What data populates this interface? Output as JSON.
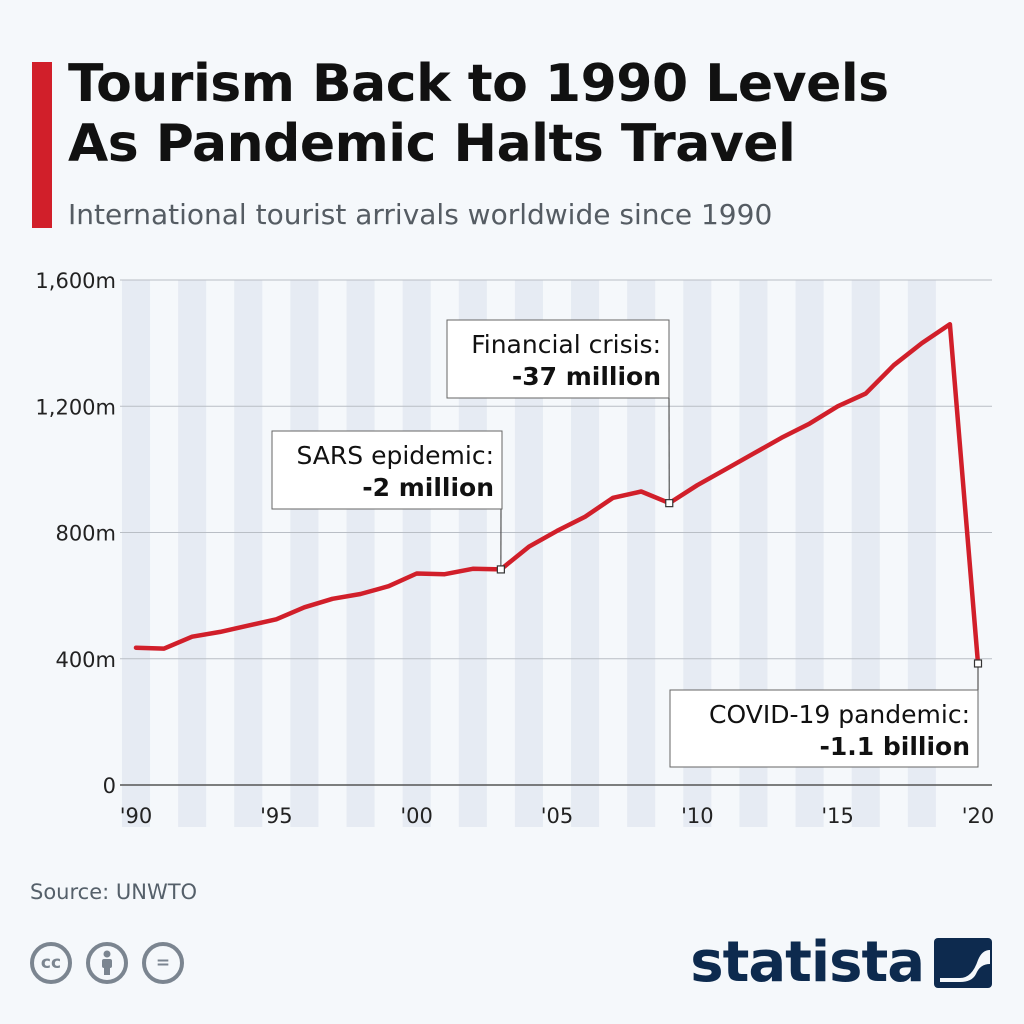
{
  "header": {
    "title_line1": "Tourism Back to 1990 Levels",
    "title_line2": "As Pandemic Halts Travel",
    "subtitle": "International tourist arrivals worldwide since 1990"
  },
  "colors": {
    "accent": "#d11f2a",
    "line": "#d11f2a",
    "stripe": "#e6ebf3",
    "brand": "#0d2a4e"
  },
  "chart_data": {
    "type": "line",
    "x": [
      1990,
      1991,
      1992,
      1993,
      1994,
      1995,
      1996,
      1997,
      1998,
      1999,
      2000,
      2001,
      2002,
      2003,
      2004,
      2005,
      2006,
      2007,
      2008,
      2009,
      2010,
      2011,
      2012,
      2013,
      2014,
      2015,
      2016,
      2017,
      2018,
      2019,
      2020
    ],
    "series": [
      {
        "values": [
          435,
          432,
          470,
          485,
          505,
          525,
          563,
          590,
          605,
          630,
          670,
          668,
          685,
          683,
          755,
          805,
          850,
          910,
          930,
          893,
          950,
          1000,
          1050,
          1100,
          1145,
          1200,
          1240,
          1330,
          1400,
          1460,
          385
        ]
      }
    ],
    "xlim": [
      1990,
      2020
    ],
    "ylim": [
      0,
      1600
    ],
    "y_ticks": [
      0,
      400,
      800,
      1200,
      1600
    ],
    "y_tick_labels": [
      "0",
      "400m",
      "800m",
      "1,200m",
      "1,600m"
    ],
    "x_ticks": [
      1990,
      1995,
      2000,
      2005,
      2010,
      2015,
      2020
    ],
    "x_tick_labels": [
      "'90",
      "'95",
      "'00",
      "'05",
      "'10",
      "'15",
      "'20"
    ],
    "grid": true,
    "annotations": [
      {
        "x": 2003,
        "y": 683,
        "label": "SARS epidemic:",
        "value": "-2 million"
      },
      {
        "x": 2009,
        "y": 893,
        "label": "Financial crisis:",
        "value": "-37 million"
      },
      {
        "x": 2020,
        "y": 385,
        "label": "COVID-19 pandemic:",
        "value": "-1.1 billion"
      }
    ]
  },
  "footer": {
    "source": "Source: UNWTO",
    "cc_icons": [
      "cc-icon",
      "attribution-icon",
      "no-derivatives-icon"
    ],
    "cc_label": "cc",
    "nd_label": "=",
    "brand": "statista"
  }
}
